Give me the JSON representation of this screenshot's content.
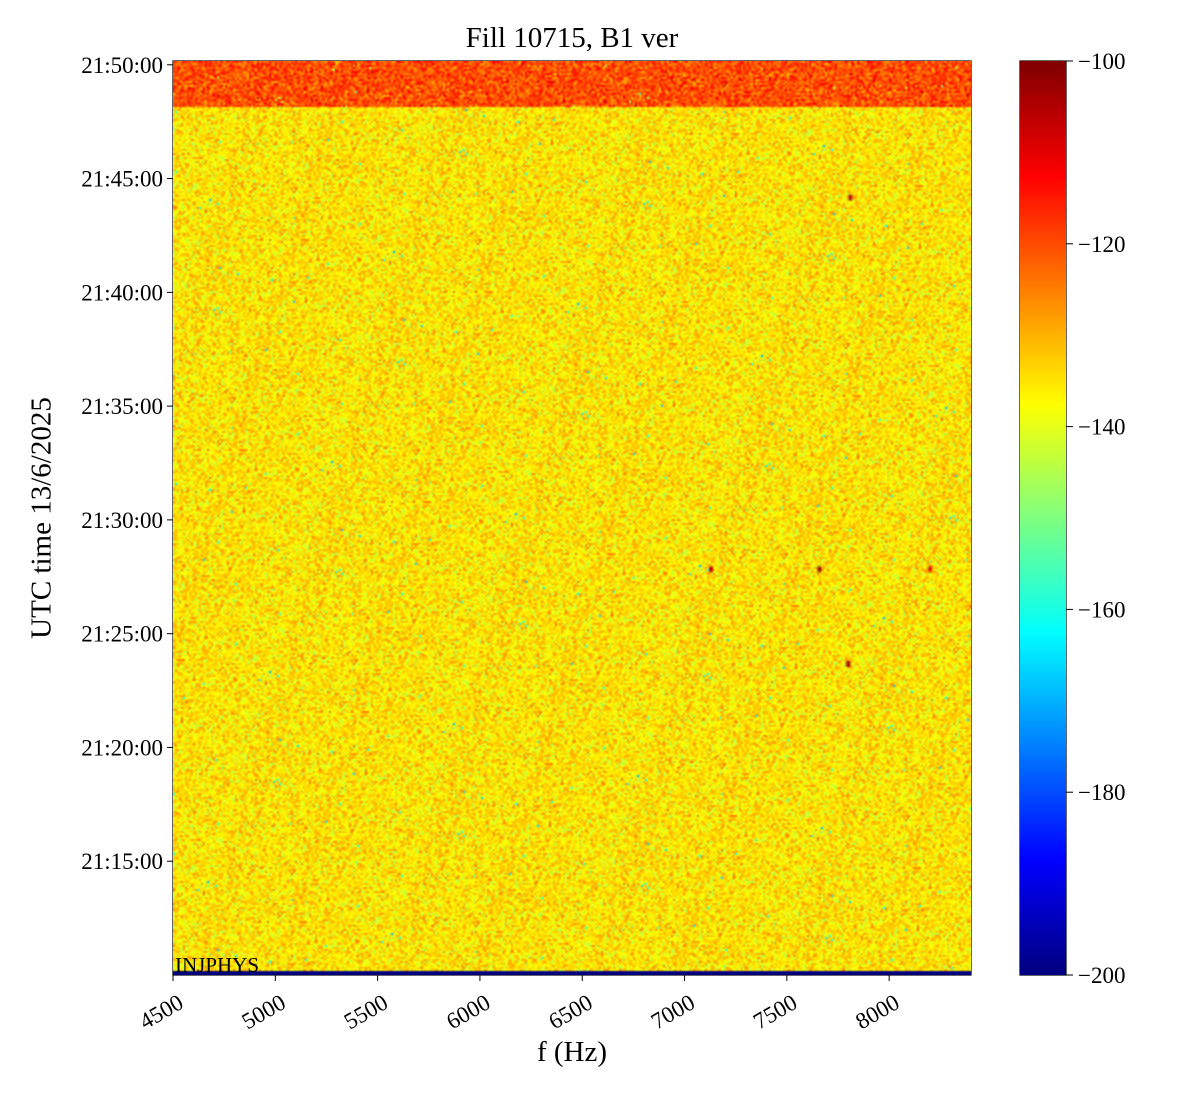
{
  "chart_data": {
    "type": "heatmap",
    "title": "Fill 10715, B1 ver",
    "xlabel": "f (Hz)",
    "ylabel": "UTC time 13/6/2025",
    "annotation": "INJPHYS",
    "x_range": [
      4500,
      8400
    ],
    "x_ticks": [
      4500,
      5000,
      5500,
      6000,
      6500,
      7000,
      7500,
      8000
    ],
    "x_tick_labels": [
      "4500",
      "5000",
      "5500",
      "6000",
      "6500",
      "7000",
      "7500",
      "8000"
    ],
    "y_range": [
      "21:10:00",
      "21:50:10"
    ],
    "y_ticks": [
      "21:15:00",
      "21:20:00",
      "21:25:00",
      "21:30:00",
      "21:35:00",
      "21:40:00",
      "21:45:00",
      "21:50:00"
    ],
    "y_tick_labels": [
      "21:15:00",
      "21:20:00",
      "21:25:00",
      "21:30:00",
      "21:35:00",
      "21:40:00",
      "21:45:00",
      "21:50:00"
    ],
    "colorbar": {
      "colormap": "jet",
      "range": [
        -200,
        -100
      ],
      "ticks": [
        -200,
        -180,
        -160,
        -140,
        -120,
        -100
      ],
      "tick_labels": [
        "−200",
        "−180",
        "−160",
        "−140",
        "−120",
        "−100"
      ]
    },
    "background_level": -135,
    "top_band": {
      "from": "21:48:10",
      "to": "21:50:10",
      "level": -120
    },
    "features": [
      {
        "time": "21:44:10",
        "frequency": 7810,
        "value": -105
      },
      {
        "time": "21:27:50",
        "frequency": 7660,
        "value": -103
      },
      {
        "time": "21:27:50",
        "frequency": 7130,
        "value": -107
      },
      {
        "time": "21:27:50",
        "frequency": 8200,
        "value": -110
      },
      {
        "time": "21:23:40",
        "frequency": 7800,
        "value": -104
      }
    ]
  }
}
